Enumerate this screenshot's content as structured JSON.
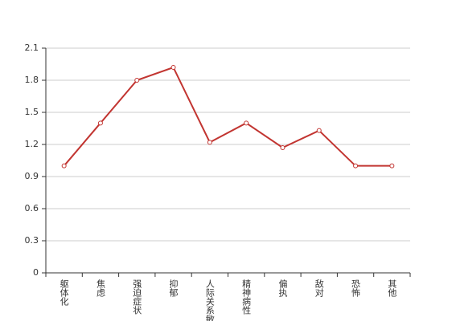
{
  "chart_data": {
    "type": "line",
    "categories": [
      "躯体化",
      "焦虑",
      "强迫症状",
      "抑郁",
      "人际关系敏感",
      "精神病性",
      "偏执",
      "敌对",
      "恐怖",
      "其他"
    ],
    "series": [
      {
        "color": "#c23531",
        "values": [
          1.0,
          1.4,
          1.8,
          1.92,
          1.22,
          1.4,
          1.17,
          1.33,
          1.0,
          1.0
        ]
      }
    ],
    "ylim": [
      0,
      2.1
    ],
    "yticks": [
      0,
      0.3,
      0.6,
      0.9,
      1.2,
      1.5,
      1.8,
      2.1
    ],
    "grid": true
  }
}
